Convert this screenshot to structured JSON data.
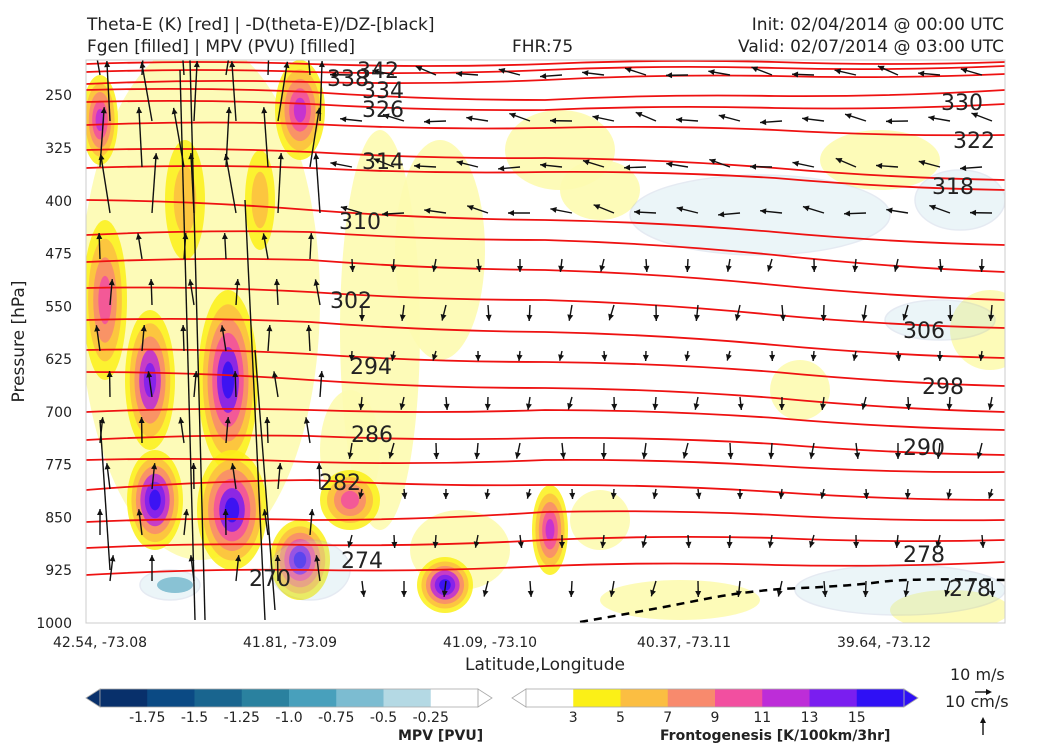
{
  "header": {
    "left_line1": "Theta-E (K) [red] | -D(theta-E)/DZ-[black]",
    "left_line2": "Fgen [filled] | MPV (PVU) [filled]",
    "center": "FHR:75",
    "right_line1": "Init: 02/04/2014 @ 00:00 UTC",
    "right_line2": "Valid: 02/07/2014 @ 03:00 UTC"
  },
  "chart_data": {
    "type": "cross-section",
    "xlabel": "Latitude,Longitude",
    "ylabel": "Pressure [hPa]",
    "x_ticks": [
      "42.54, -73.08",
      "41.81, -73.09",
      "41.09, -73.10",
      "40.37, -73.11",
      "39.64, -73.12"
    ],
    "y_ticks": [
      250,
      325,
      400,
      475,
      550,
      625,
      700,
      775,
      850,
      925,
      1000
    ],
    "ylim": [
      1000,
      200
    ],
    "theta_e_contour_labels": [
      "338",
      "342",
      "334",
      "326",
      "330",
      "322",
      "314",
      "318",
      "310",
      "302",
      "306",
      "294",
      "298",
      "286",
      "290",
      "282",
      "274",
      "278",
      "270",
      "278"
    ],
    "mpv_colorbar": {
      "label": "MPV [PVU]",
      "ticks": [
        "-1.75",
        "-1.5",
        "-1.25",
        "-1.0",
        "-0.75",
        "-0.5",
        "-0.25"
      ],
      "colors": [
        "#08306b",
        "#0b4a84",
        "#19658f",
        "#2a819f",
        "#48a0bc",
        "#7cbcd1",
        "#b4d9e4",
        "#ffffff"
      ]
    },
    "fgen_colorbar": {
      "label": "Frontogenesis [K/100km/3hr]",
      "ticks": [
        "3",
        "5",
        "7",
        "9",
        "11",
        "13",
        "15"
      ],
      "colors": [
        "#ffffff",
        "#fbf017",
        "#fbbe42",
        "#f88a6d",
        "#f24fa0",
        "#bd2dd8",
        "#7a1ef0",
        "#2f10f5"
      ]
    }
  },
  "wind_key": {
    "horizontal": "10 m/s",
    "vertical": "10 cm/s"
  }
}
